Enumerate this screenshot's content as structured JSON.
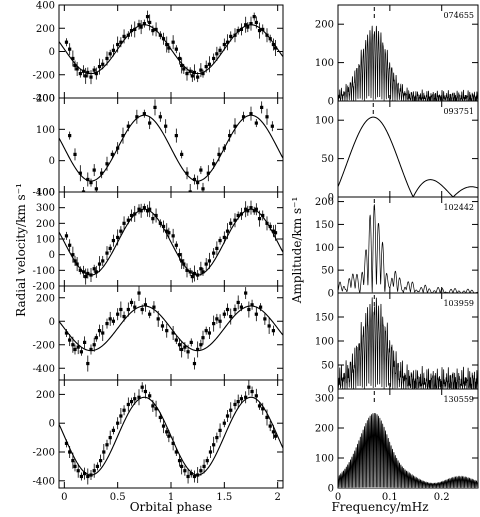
{
  "figure": {
    "left_ylabel": "Radial velocity/km s⁻¹",
    "left_xlabel": "Orbital phase",
    "right_ylabel": "Amplitude/km s⁻¹",
    "right_xlabel": "Frequency/mHz",
    "phase_ticks": [
      "0",
      "0.5",
      "1",
      "1.5",
      "2"
    ],
    "freq_ticks": [
      "0",
      "0.1",
      "0.2"
    ]
  },
  "chart_data": [
    {
      "type": "scatter",
      "title": "",
      "xlabel": "",
      "ylabel": "",
      "xlim": [
        -0.05,
        2.05
      ],
      "ylim": [
        -400,
        400
      ],
      "yticks": [
        -400,
        -200,
        0,
        200,
        400
      ],
      "model": {
        "gamma": 20,
        "K": 210,
        "phase_of_max": 0.75
      },
      "points": [
        [
          0.02,
          80
        ],
        [
          0.05,
          20
        ],
        [
          0.08,
          -60
        ],
        [
          0.1,
          -120
        ],
        [
          0.12,
          -150
        ],
        [
          0.15,
          -190
        ],
        [
          0.18,
          -170
        ],
        [
          0.2,
          -210
        ],
        [
          0.22,
          -180
        ],
        [
          0.25,
          -220
        ],
        [
          0.28,
          -160
        ],
        [
          0.3,
          -190
        ],
        [
          0.33,
          -130
        ],
        [
          0.36,
          -110
        ],
        [
          0.4,
          -60
        ],
        [
          0.43,
          -20
        ],
        [
          0.46,
          10
        ],
        [
          0.5,
          60
        ],
        [
          0.53,
          80
        ],
        [
          0.56,
          130
        ],
        [
          0.6,
          140
        ],
        [
          0.63,
          180
        ],
        [
          0.66,
          190
        ],
        [
          0.7,
          230
        ],
        [
          0.72,
          210
        ],
        [
          0.75,
          240
        ],
        [
          0.78,
          300
        ],
        [
          0.8,
          250
        ],
        [
          0.83,
          180
        ],
        [
          0.86,
          190
        ],
        [
          0.9,
          140
        ],
        [
          0.93,
          110
        ],
        [
          0.96,
          60
        ],
        [
          0.98,
          30
        ]
      ]
    },
    {
      "type": "scatter",
      "title": "",
      "xlabel": "",
      "ylabel": "",
      "xlim": [
        -0.05,
        2.05
      ],
      "ylim": [
        -100,
        200
      ],
      "yticks": [
        -100,
        0,
        100,
        200
      ],
      "model": {
        "gamma": 40,
        "K": 105,
        "phase_of_max": 0.75
      },
      "points": [
        [
          0.05,
          80
        ],
        [
          0.1,
          20
        ],
        [
          0.15,
          -40
        ],
        [
          0.18,
          -100
        ],
        [
          0.22,
          -60
        ],
        [
          0.25,
          -70
        ],
        [
          0.28,
          -30
        ],
        [
          0.3,
          -90
        ],
        [
          0.35,
          -40
        ],
        [
          0.4,
          -10
        ],
        [
          0.45,
          20
        ],
        [
          0.5,
          40
        ],
        [
          0.55,
          80
        ],
        [
          0.6,
          110
        ],
        [
          0.68,
          140
        ],
        [
          0.75,
          150
        ],
        [
          0.8,
          120
        ],
        [
          0.85,
          170
        ],
        [
          0.9,
          140
        ],
        [
          0.95,
          110
        ]
      ]
    },
    {
      "type": "scatter",
      "title": "",
      "xlabel": "",
      "ylabel": "",
      "xlim": [
        -0.05,
        2.05
      ],
      "ylim": [
        -200,
        400
      ],
      "yticks": [
        -200,
        -100,
        0,
        100,
        200,
        300,
        400
      ],
      "model": {
        "gamma": 80,
        "K": 210,
        "phase_of_max": 0.75
      },
      "points": [
        [
          0.02,
          120
        ],
        [
          0.05,
          60
        ],
        [
          0.08,
          0
        ],
        [
          0.1,
          -40
        ],
        [
          0.12,
          -60
        ],
        [
          0.15,
          -100
        ],
        [
          0.18,
          -110
        ],
        [
          0.2,
          -140
        ],
        [
          0.22,
          -120
        ],
        [
          0.25,
          -130
        ],
        [
          0.28,
          -90
        ],
        [
          0.3,
          -110
        ],
        [
          0.33,
          -60
        ],
        [
          0.36,
          -40
        ],
        [
          0.4,
          10
        ],
        [
          0.43,
          40
        ],
        [
          0.46,
          90
        ],
        [
          0.5,
          110
        ],
        [
          0.53,
          150
        ],
        [
          0.56,
          200
        ],
        [
          0.6,
          220
        ],
        [
          0.63,
          250
        ],
        [
          0.66,
          260
        ],
        [
          0.7,
          290
        ],
        [
          0.72,
          280
        ],
        [
          0.75,
          300
        ],
        [
          0.78,
          280
        ],
        [
          0.8,
          290
        ],
        [
          0.83,
          230
        ],
        [
          0.86,
          250
        ],
        [
          0.9,
          200
        ],
        [
          0.93,
          180
        ],
        [
          0.96,
          150
        ],
        [
          0.98,
          140
        ]
      ]
    },
    {
      "type": "scatter",
      "title": "",
      "xlabel": "",
      "ylabel": "",
      "xlim": [
        -0.05,
        2.05
      ],
      "ylim": [
        -500,
        300
      ],
      "yticks": [
        -400,
        -200,
        0,
        200
      ],
      "model": {
        "gamma": -60,
        "K": 190,
        "phase_of_max": 0.75
      },
      "points": [
        [
          0.02,
          -100
        ],
        [
          0.05,
          -160
        ],
        [
          0.08,
          -200
        ],
        [
          0.1,
          -240
        ],
        [
          0.13,
          -220
        ],
        [
          0.16,
          -260
        ],
        [
          0.19,
          -180
        ],
        [
          0.22,
          -360
        ],
        [
          0.25,
          -240
        ],
        [
          0.28,
          -200
        ],
        [
          0.3,
          -140
        ],
        [
          0.33,
          -80
        ],
        [
          0.36,
          -100
        ],
        [
          0.4,
          -20
        ],
        [
          0.43,
          20
        ],
        [
          0.46,
          0
        ],
        [
          0.5,
          60
        ],
        [
          0.53,
          100
        ],
        [
          0.56,
          40
        ],
        [
          0.6,
          100
        ],
        [
          0.63,
          160
        ],
        [
          0.66,
          120
        ],
        [
          0.7,
          240
        ],
        [
          0.73,
          100
        ],
        [
          0.76,
          140
        ],
        [
          0.8,
          60
        ],
        [
          0.84,
          120
        ],
        [
          0.88,
          20
        ],
        [
          0.92,
          -40
        ],
        [
          0.96,
          -80
        ]
      ]
    },
    {
      "type": "scatter",
      "title": "",
      "xlabel": "",
      "ylabel": "",
      "xlim": [
        -0.05,
        2.05
      ],
      "ylim": [
        -450,
        300
      ],
      "yticks": [
        -400,
        -200,
        0,
        200
      ],
      "model": {
        "gamma": -90,
        "K": 270,
        "phase_of_max": 0.75
      },
      "points": [
        [
          0.02,
          -140
        ],
        [
          0.05,
          -200
        ],
        [
          0.08,
          -260
        ],
        [
          0.1,
          -300
        ],
        [
          0.13,
          -330
        ],
        [
          0.16,
          -370
        ],
        [
          0.19,
          -350
        ],
        [
          0.22,
          -370
        ],
        [
          0.25,
          -360
        ],
        [
          0.28,
          -330
        ],
        [
          0.31,
          -300
        ],
        [
          0.34,
          -260
        ],
        [
          0.37,
          -200
        ],
        [
          0.4,
          -150
        ],
        [
          0.43,
          -100
        ],
        [
          0.46,
          -50
        ],
        [
          0.5,
          0
        ],
        [
          0.53,
          50
        ],
        [
          0.56,
          90
        ],
        [
          0.6,
          130
        ],
        [
          0.63,
          150
        ],
        [
          0.66,
          170
        ],
        [
          0.7,
          180
        ],
        [
          0.73,
          250
        ],
        [
          0.76,
          220
        ],
        [
          0.8,
          190
        ],
        [
          0.83,
          120
        ],
        [
          0.86,
          100
        ],
        [
          0.9,
          40
        ],
        [
          0.93,
          -20
        ],
        [
          0.96,
          -60
        ],
        [
          0.98,
          -90
        ]
      ]
    },
    {
      "type": "line",
      "title": "",
      "label": "074655",
      "xlabel": "",
      "ylabel": "",
      "xlim": [
        0,
        0.27
      ],
      "ylim": [
        0,
        250
      ],
      "yticks": [
        0,
        100,
        200
      ],
      "peak_frequency": 0.07,
      "peak_amplitude": 205,
      "spectrum_shape": "dense-forest",
      "sidelobe_spacing": 0.0042,
      "floor": 30
    },
    {
      "type": "line",
      "title": "",
      "label": "093751",
      "xlabel": "",
      "ylabel": "",
      "xlim": [
        0,
        0.27
      ],
      "ylim": [
        0,
        125
      ],
      "yticks": [
        0,
        50,
        100
      ],
      "peak_frequency": 0.068,
      "peak_amplitude": 104,
      "spectrum_shape": "broad-sinc",
      "first_null": 0.145,
      "second_lobe_max": 0.19,
      "second_lobe_amplitude": 37
    },
    {
      "type": "line",
      "title": "",
      "label": "102442",
      "xlabel": "",
      "ylabel": "",
      "xlim": [
        0,
        0.27
      ],
      "ylim": [
        0,
        210
      ],
      "yticks": [
        0,
        50,
        100,
        150,
        200
      ],
      "peak_frequency": 0.07,
      "peak_amplitude": 175,
      "spectrum_shape": "comb-sinc",
      "comb_spacing": 0.0082,
      "envelope_null": 0.028
    },
    {
      "type": "line",
      "title": "",
      "label": "103959",
      "xlabel": "",
      "ylabel": "",
      "xlim": [
        0,
        0.27
      ],
      "ylim": [
        0,
        200
      ],
      "yticks": [
        0,
        50,
        100,
        150
      ],
      "peak_frequency": 0.07,
      "peak_amplitude": 185,
      "spectrum_shape": "noisy-forest",
      "sidelobe_spacing": 0.0042,
      "floor": 30
    },
    {
      "type": "line",
      "title": "",
      "label": "130559",
      "xlabel": "",
      "ylabel": "",
      "xlim": [
        0,
        0.27
      ],
      "ylim": [
        0,
        330
      ],
      "yticks": [
        0,
        100,
        200,
        300
      ],
      "peak_frequency": 0.07,
      "peak_amplitude": 250,
      "spectrum_shape": "comb-envelope",
      "comb_spacing": 0.0027,
      "fill_color": "#cccccc"
    }
  ]
}
